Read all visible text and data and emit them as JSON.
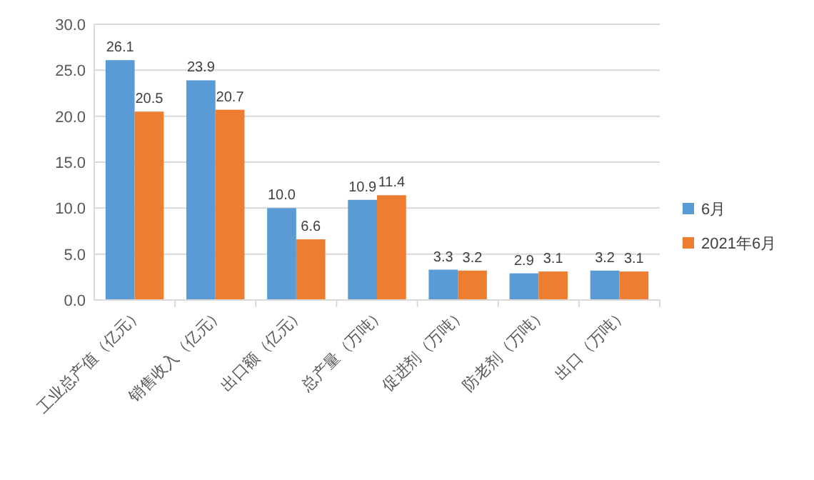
{
  "chart_data": {
    "type": "bar",
    "categories": [
      "工业总产值（亿元）",
      "销售收入（亿元）",
      "出口额（亿元）",
      "总产量（万吨）",
      "促进剂（万吨）",
      "防老剂（万吨）",
      "出口（万吨）"
    ],
    "series": [
      {
        "name": "6月",
        "color": "#5b9bd5",
        "values": [
          26.1,
          23.9,
          10.0,
          10.9,
          3.3,
          2.9,
          3.2
        ],
        "value_labels": [
          "26.1",
          "23.9",
          "10.0",
          "10.9",
          "3.3",
          "2.9",
          "3.2"
        ]
      },
      {
        "name": "2021年6月",
        "color": "#ed7d31",
        "values": [
          20.5,
          20.7,
          6.6,
          11.4,
          3.2,
          3.1,
          3.1
        ],
        "value_labels": [
          "20.5",
          "20.7",
          "6.6",
          "11.4",
          "3.2",
          "3.1",
          "3.1"
        ]
      }
    ],
    "ylim": [
      0,
      30
    ],
    "yticks": [
      {
        "value": 0,
        "label": "0.0"
      },
      {
        "value": 5,
        "label": "5.0"
      },
      {
        "value": 10,
        "label": "10.0"
      },
      {
        "value": 15,
        "label": "15.0"
      },
      {
        "value": 20,
        "label": "20.0"
      },
      {
        "value": 25,
        "label": "25.0"
      },
      {
        "value": 30,
        "label": "30.0"
      }
    ],
    "grid": "y",
    "legend": "right"
  }
}
